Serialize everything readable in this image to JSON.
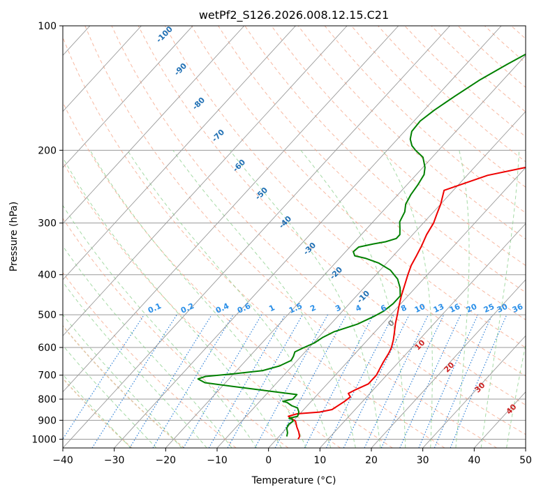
{
  "chart_data": {
    "type": "line",
    "title": "wetPf2_S126.2026.008.12.15.C21",
    "xlabel": "Temperature (°C)",
    "ylabel": "Pressure (hPa)",
    "xlim": [
      -40,
      50
    ],
    "ylim": [
      1050,
      100
    ],
    "y_scale": "log",
    "grid": true,
    "x_ticks": [
      -40,
      -30,
      -20,
      -10,
      0,
      10,
      20,
      30,
      40,
      50
    ],
    "y_ticks": [
      100,
      200,
      300,
      400,
      500,
      600,
      700,
      800,
      900,
      1000
    ],
    "colors": {
      "temperature": "#ee0000",
      "dewpoint": "#008000",
      "isotherm": "#999999",
      "dry_adiabat": "#f4a081",
      "moist_adiabat": "#8fd18f",
      "mixing_ratio": "#1f77d4",
      "mixing_ratio_label": "#2a8fe8",
      "isotherm_label": "#2070b4",
      "warm_label": "#cc2222",
      "zero_label": "#888888"
    },
    "series": [
      {
        "name": "temperature",
        "color": "#ee0000",
        "points": [
          [
            4.2,
            1000
          ],
          [
            4.0,
            985
          ],
          [
            3.0,
            960
          ],
          [
            1.8,
            935
          ],
          [
            0.5,
            905
          ],
          [
            -1.8,
            880
          ],
          [
            -0.5,
            868
          ],
          [
            3.5,
            860
          ],
          [
            5.5,
            848
          ],
          [
            6.5,
            810
          ],
          [
            6.8,
            790
          ],
          [
            5.8,
            775
          ],
          [
            6.5,
            760
          ],
          [
            8.0,
            735
          ],
          [
            8.0,
            700
          ],
          [
            7.6,
            680
          ],
          [
            7.0,
            650
          ],
          [
            6.5,
            620
          ],
          [
            6.0,
            600
          ],
          [
            5.0,
            575
          ],
          [
            3.8,
            550
          ],
          [
            2.5,
            525
          ],
          [
            1.3,
            500
          ],
          [
            0.0,
            475
          ],
          [
            -1.3,
            450
          ],
          [
            -2.5,
            425
          ],
          [
            -3.8,
            400
          ],
          [
            -4.8,
            380
          ],
          [
            -5.5,
            360
          ],
          [
            -6.3,
            340
          ],
          [
            -7.3,
            320
          ],
          [
            -8.0,
            300
          ],
          [
            -9.0,
            285
          ],
          [
            -10.0,
            270
          ],
          [
            -11.8,
            250
          ],
          [
            -6.0,
            230
          ],
          [
            0.0,
            220
          ],
          [
            6.0,
            210
          ],
          [
            9.5,
            200
          ],
          [
            14.0,
            190
          ],
          [
            18.0,
            180
          ],
          [
            21.5,
            170
          ],
          [
            23.5,
            165
          ],
          [
            25.0,
            158
          ],
          [
            26.3,
            153
          ],
          [
            27.0,
            148
          ],
          [
            27.5,
            143
          ],
          [
            28.5,
            138
          ],
          [
            30.0,
            133
          ],
          [
            31.5,
            128
          ],
          [
            33.0,
            124
          ],
          [
            34.6,
            120
          ],
          [
            36.0,
            116
          ],
          [
            37.5,
            112
          ],
          [
            38.5,
            108
          ],
          [
            39.6,
            104
          ],
          [
            40.5,
            100
          ]
        ]
      },
      {
        "name": "dewpoint",
        "color": "#008000",
        "points": [
          [
            1.5,
            985
          ],
          [
            1.0,
            965
          ],
          [
            0.0,
            940
          ],
          [
            -0.3,
            920
          ],
          [
            0.0,
            905
          ],
          [
            -0.5,
            895
          ],
          [
            -1.3,
            890
          ],
          [
            0.0,
            880
          ],
          [
            -0.5,
            860
          ],
          [
            -1.5,
            840
          ],
          [
            -3.0,
            830
          ],
          [
            -4.5,
            815
          ],
          [
            -5.5,
            810
          ],
          [
            -4.0,
            800
          ],
          [
            -4.0,
            790
          ],
          [
            -4.0,
            780
          ],
          [
            -10.0,
            765
          ],
          [
            -18.0,
            745
          ],
          [
            -24.0,
            730
          ],
          [
            -26.0,
            715
          ],
          [
            -25.0,
            705
          ],
          [
            -20.0,
            695
          ],
          [
            -15.0,
            683
          ],
          [
            -12.5,
            665
          ],
          [
            -11.2,
            645
          ],
          [
            -11.5,
            630
          ],
          [
            -12.0,
            615
          ],
          [
            -11.0,
            600
          ],
          [
            -9.8,
            585
          ],
          [
            -9.2,
            568
          ],
          [
            -8.0,
            550
          ],
          [
            -4.8,
            527
          ],
          [
            -3.0,
            505
          ],
          [
            -2.0,
            490
          ],
          [
            -1.5,
            470
          ],
          [
            -1.5,
            450
          ],
          [
            -3.0,
            430
          ],
          [
            -5.0,
            410
          ],
          [
            -8.0,
            390
          ],
          [
            -11.5,
            375
          ],
          [
            -15.0,
            365
          ],
          [
            -17.5,
            360
          ],
          [
            -18.5,
            352
          ],
          [
            -18.3,
            343
          ],
          [
            -16.0,
            337
          ],
          [
            -14.0,
            333
          ],
          [
            -12.5,
            327
          ],
          [
            -12.5,
            320
          ],
          [
            -13.5,
            310
          ],
          [
            -14.8,
            298
          ],
          [
            -15.6,
            282
          ],
          [
            -16.8,
            270
          ],
          [
            -17.5,
            256
          ],
          [
            -17.9,
            242
          ],
          [
            -18.5,
            229
          ],
          [
            -19.6,
            220
          ],
          [
            -21.8,
            208
          ],
          [
            -24.5,
            200
          ],
          [
            -26.0,
            195
          ],
          [
            -27.5,
            188
          ],
          [
            -28.6,
            180
          ],
          [
            -28.8,
            170
          ],
          [
            -28.0,
            160
          ],
          [
            -26.5,
            148
          ],
          [
            -24.5,
            135
          ],
          [
            -22.0,
            124
          ],
          [
            -19.6,
            115
          ],
          [
            -16.5,
            108
          ],
          [
            -13.7,
            104
          ],
          [
            -11.3,
            100
          ]
        ]
      }
    ],
    "isotherm_labels": [
      "-100",
      "-90",
      "-80",
      "-70",
      "-60",
      "-50",
      "-40",
      "-30",
      "-20",
      "-10"
    ],
    "zero_label": "0",
    "warm_isotherm_labels": [
      "10",
      "20",
      "30",
      "40"
    ],
    "mixing_ratio_labels": [
      "0.1",
      "0.2",
      "0.4",
      "0.6",
      "1",
      "1.5",
      "2",
      "3",
      "4",
      "6",
      "8",
      "10",
      "13",
      "16",
      "20",
      "25",
      "30",
      "36"
    ]
  }
}
